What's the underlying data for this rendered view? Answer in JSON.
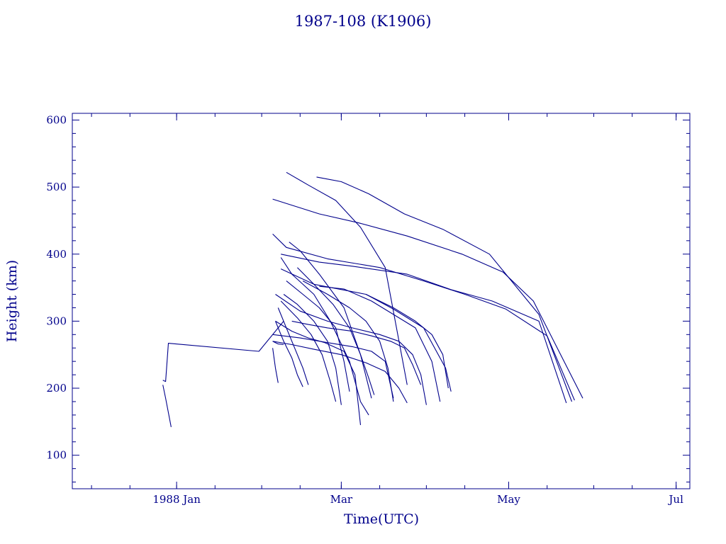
{
  "chart_data": {
    "type": "line",
    "title": "1987-108 (K1906)",
    "xlabel": "Time(UTC)",
    "ylabel": "Height (km)",
    "color": "#00008b",
    "x_ticks": [
      {
        "date": "1988-01-01",
        "label": "1988 Jan"
      },
      {
        "date": "1988-03-01",
        "label": "Mar"
      },
      {
        "date": "1988-05-01",
        "label": "May"
      },
      {
        "date": "1988-07-01",
        "label": "Jul"
      }
    ],
    "xlim": [
      "1987-11-24",
      "1988-07-06"
    ],
    "ylim": [
      50,
      610
    ],
    "y_ticks": [
      100,
      200,
      300,
      400,
      500,
      600
    ],
    "series": [
      {
        "x": [
          "1987-12-27",
          "1987-12-28",
          "1987-12-30"
        ],
        "y": [
          205,
          185,
          142
        ]
      },
      {
        "x": [
          "1987-12-27",
          "1987-12-28",
          "1987-12-29",
          "1988-01-31",
          "1988-02-09"
        ],
        "y": [
          212,
          210,
          267,
          255,
          300
        ]
      },
      {
        "x": [
          "1988-02-05",
          "1988-02-06",
          "1988-02-07",
          "1988-02-09"
        ],
        "y": [
          270,
          268,
          266,
          265
        ]
      },
      {
        "x": [
          "1988-02-05",
          "1988-02-06",
          "1988-02-07"
        ],
        "y": [
          260,
          230,
          208
        ]
      },
      {
        "x": [
          "1988-02-10",
          "1988-02-18",
          "1988-02-28",
          "1988-03-08",
          "1988-03-17",
          "1988-03-25"
        ],
        "y": [
          522,
          503,
          480,
          440,
          380,
          205
        ]
      },
      {
        "x": [
          "1988-02-21",
          "1988-03-01",
          "1988-03-11",
          "1988-03-24",
          "1988-04-07",
          "1988-04-24",
          "1988-05-12",
          "1988-05-24"
        ],
        "y": [
          515,
          508,
          490,
          460,
          437,
          400,
          310,
          180
        ]
      },
      {
        "x": [
          "1988-02-05",
          "1988-02-22",
          "1988-03-07",
          "1988-03-25",
          "1988-04-14",
          "1988-04-29",
          "1988-05-10",
          "1988-05-28"
        ],
        "y": [
          482,
          460,
          447,
          427,
          400,
          373,
          330,
          185
        ]
      },
      {
        "x": [
          "1988-02-05",
          "1988-02-10",
          "1988-02-25",
          "1988-03-15",
          "1988-03-31",
          "1988-04-15",
          "1988-04-30",
          "1988-05-15",
          "1988-05-25"
        ],
        "y": [
          430,
          410,
          393,
          380,
          360,
          340,
          318,
          278,
          182
        ]
      },
      {
        "x": [
          "1988-02-08",
          "1988-02-22",
          "1988-03-05",
          "1988-03-25",
          "1988-04-10",
          "1988-04-25",
          "1988-05-12",
          "1988-05-22"
        ],
        "y": [
          400,
          388,
          382,
          370,
          347,
          330,
          300,
          178
        ]
      },
      {
        "x": [
          "1988-02-08",
          "1988-02-20",
          "1988-03-10",
          "1988-03-20",
          "1988-03-31",
          "1988-04-08",
          "1988-04-10"
        ],
        "y": [
          378,
          355,
          340,
          318,
          290,
          230,
          195
        ]
      },
      {
        "x": [
          "1988-02-11",
          "1988-02-15",
          "1988-02-22",
          "1988-03-02",
          "1988-03-08",
          "1988-03-12"
        ],
        "y": [
          418,
          405,
          370,
          320,
          250,
          185
        ]
      },
      {
        "x": [
          "1988-02-06",
          "1988-02-15",
          "1988-02-25",
          "1988-03-05",
          "1988-03-15",
          "1988-03-22",
          "1988-03-27",
          "1988-03-30",
          "1988-04-01"
        ],
        "y": [
          340,
          315,
          300,
          290,
          280,
          270,
          250,
          220,
          175
        ]
      },
      {
        "x": [
          "1988-02-08",
          "1988-02-12",
          "1988-02-20",
          "1988-02-26",
          "1988-03-04",
          "1988-03-08",
          "1988-03-11"
        ],
        "y": [
          395,
          370,
          340,
          300,
          240,
          180,
          160
        ]
      },
      {
        "x": [
          "1988-02-05",
          "1988-02-15",
          "1988-02-25",
          "1988-03-05",
          "1988-03-12",
          "1988-03-17",
          "1988-03-20"
        ],
        "y": [
          280,
          275,
          268,
          262,
          255,
          240,
          185
        ]
      },
      {
        "x": [
          "1988-02-06",
          "1988-02-12",
          "1988-02-18",
          "1988-02-24",
          "1988-03-02",
          "1988-03-06",
          "1988-03-08"
        ],
        "y": [
          300,
          285,
          275,
          268,
          255,
          220,
          145
        ]
      },
      {
        "x": [
          "1988-02-08",
          "1988-02-14",
          "1988-02-19",
          "1988-02-23",
          "1988-02-26",
          "1988-02-28"
        ],
        "y": [
          330,
          305,
          280,
          250,
          210,
          180
        ]
      },
      {
        "x": [
          "1988-02-09",
          "1988-02-14",
          "1988-02-20",
          "1988-02-25",
          "1988-02-28",
          "1988-03-01"
        ],
        "y": [
          340,
          325,
          300,
          270,
          230,
          175
        ]
      },
      {
        "x": [
          "1988-02-10",
          "1988-02-16",
          "1988-02-22",
          "1988-02-28",
          "1988-03-02",
          "1988-03-04"
        ],
        "y": [
          360,
          340,
          320,
          290,
          240,
          195
        ]
      },
      {
        "x": [
          "1988-02-07",
          "1988-02-10",
          "1988-02-13",
          "1988-02-16",
          "1988-02-18"
        ],
        "y": [
          320,
          290,
          260,
          230,
          205
        ]
      },
      {
        "x": [
          "1988-02-06",
          "1988-02-09",
          "1988-02-12",
          "1988-02-14",
          "1988-02-16"
        ],
        "y": [
          300,
          270,
          245,
          220,
          202
        ]
      },
      {
        "x": [
          "1988-02-12",
          "1988-02-18",
          "1988-02-25",
          "1988-03-05",
          "1988-03-12",
          "1988-03-19",
          "1988-03-24",
          "1988-03-27",
          "1988-03-30"
        ],
        "y": [
          300,
          295,
          290,
          285,
          278,
          270,
          260,
          235,
          205
        ]
      },
      {
        "x": [
          "1988-02-22",
          "1988-03-02",
          "1988-03-12",
          "1988-03-20",
          "1988-03-28",
          "1988-04-03",
          "1988-04-06"
        ],
        "y": [
          352,
          348,
          330,
          310,
          290,
          240,
          180
        ]
      },
      {
        "x": [
          "1988-02-16",
          "1988-02-25",
          "1988-03-04",
          "1988-03-10",
          "1988-03-15",
          "1988-03-18",
          "1988-03-20"
        ],
        "y": [
          360,
          340,
          320,
          300,
          270,
          230,
          180
        ]
      },
      {
        "x": [
          "1988-02-14",
          "1988-02-20",
          "1988-02-27",
          "1988-03-04",
          "1988-03-08",
          "1988-03-11",
          "1988-03-13"
        ],
        "y": [
          380,
          355,
          325,
          290,
          250,
          215,
          190
        ]
      },
      {
        "x": [
          "1988-03-10",
          "1988-03-20",
          "1988-03-28",
          "1988-04-03",
          "1988-04-07",
          "1988-04-09"
        ],
        "y": [
          340,
          320,
          300,
          280,
          250,
          200
        ]
      },
      {
        "x": [
          "1988-02-05",
          "1988-02-12",
          "1988-02-20",
          "1988-03-01",
          "1988-03-10",
          "1988-03-17",
          "1988-03-22",
          "1988-03-25"
        ],
        "y": [
          270,
          265,
          258,
          250,
          238,
          225,
          200,
          178
        ]
      }
    ]
  }
}
